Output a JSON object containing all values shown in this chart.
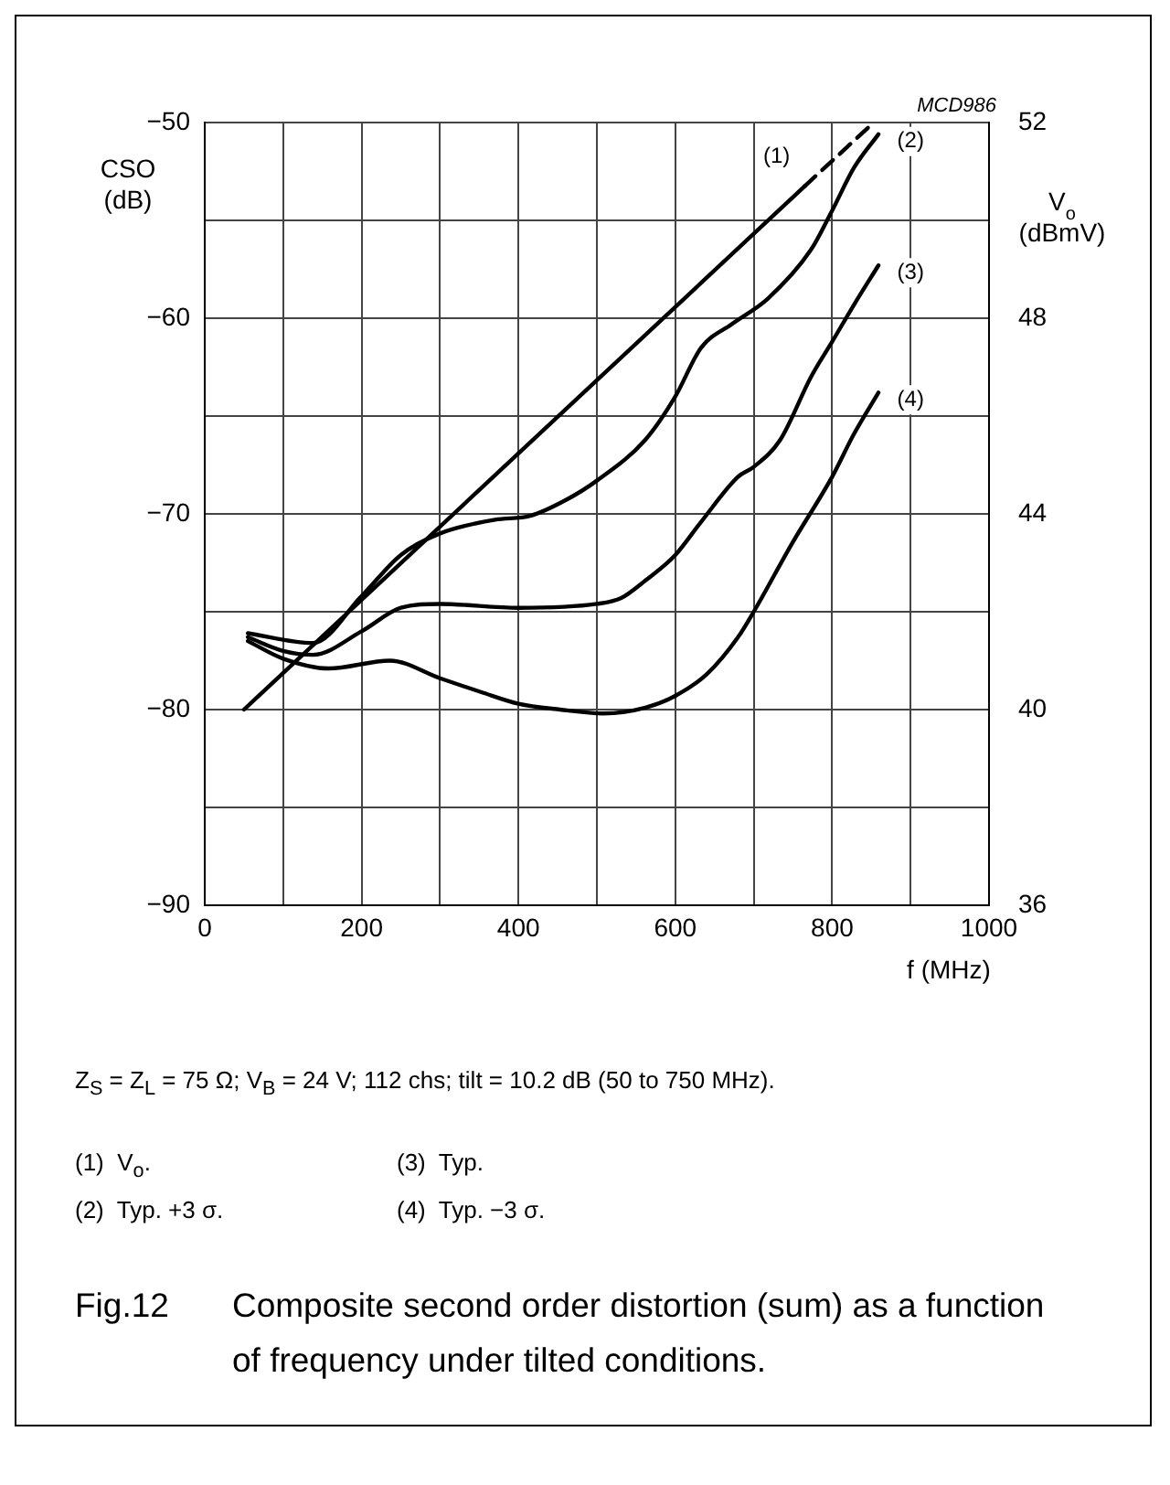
{
  "chart_data": {
    "type": "line",
    "title": "Fig.12  Composite second order distortion (sum) as a function of frequency under tilted conditions.",
    "xlabel": "f (MHz)",
    "ylabel": "CSO\n(dB)",
    "y2label": "V$_{o}$\n(dBmV)",
    "annotations": [
      "MCD986",
      "Z$_{S}$ = Z$_{L}$ = 75 Ω; V$_{B}$ = 24 V; 112 chs; tilt = 10.2 dB (50 to 750 MHz).",
      "(1)  V$_{o}$.",
      "(3)  Typ.",
      "(2)  Typ. +3 σ.",
      "(4)  Typ. −3 σ."
    ],
    "xlim": [
      0,
      1000
    ],
    "xticks": [
      0,
      {
        "value": 100,
        "label": null
      },
      200,
      {
        "value": 300,
        "label": null
      },
      400,
      {
        "value": 500,
        "label": null
      },
      600,
      {
        "value": 700,
        "label": null
      },
      800,
      {
        "value": 900,
        "label": null
      },
      1000
    ],
    "ylim": [
      -90,
      -50
    ],
    "yticks": [
      {
        "value": -90,
        "label": "−90"
      },
      {
        "value": -85,
        "label": null
      },
      {
        "value": -80,
        "label": "−80"
      },
      {
        "value": -75,
        "label": null
      },
      {
        "value": -70,
        "label": "−70"
      },
      {
        "value": -65,
        "label": null
      },
      {
        "value": -60,
        "label": "−60"
      },
      {
        "value": -55,
        "label": null
      },
      {
        "value": -50,
        "label": "−50"
      }
    ],
    "y2lim": [
      36,
      52
    ],
    "y2ticks": [
      36,
      40,
      44,
      48,
      52
    ],
    "grid": true,
    "legend": false,
    "marker": "none",
    "series": [
      {
        "name": "(1)",
        "color": "#000000",
        "axis": "y2",
        "line_style": "solid",
        "x": [
          50,
          765
        ],
        "values": [
          40,
          50.7
        ]
      },
      {
        "color": "#000000",
        "axis": "y2",
        "line_style": "dashed",
        "x": [
          765,
          853
        ],
        "values": [
          50.7,
          52
        ]
      },
      {
        "name": "(2)",
        "color": "#000000",
        "line_style": "solid",
        "x": [
          55,
          138,
          200,
          250,
          300,
          370,
          415,
          460,
          500,
          562,
          600,
          633,
          672,
          718,
          773,
          800,
          828,
          859
        ],
        "values": [
          -76.1,
          -76.6,
          -74.2,
          -72.1,
          -71.0,
          -70.3,
          -70.1,
          -69.3,
          -68.3,
          -66.2,
          -64.0,
          -61.5,
          -60.3,
          -59.0,
          -56.5,
          -54.5,
          -52.3,
          -50.6
        ]
      },
      {
        "name": "(3)",
        "color": "#000000",
        "line_style": "solid",
        "x": [
          55,
          100,
          138,
          200,
          250,
          300,
          400,
          500,
          531,
          562,
          600,
          633,
          680,
          700,
          734,
          773,
          800,
          828,
          859
        ],
        "values": [
          -76.3,
          -77.0,
          -77.2,
          -76.0,
          -74.8,
          -74.6,
          -74.8,
          -74.6,
          -74.3,
          -73.4,
          -72.1,
          -70.4,
          -68.1,
          -67.6,
          -66.2,
          -63.0,
          -61.2,
          -59.3,
          -57.3
        ]
      },
      {
        "name": "(4)",
        "color": "#000000",
        "line_style": "solid",
        "x": [
          55,
          100,
          158,
          236,
          300,
          352,
          400,
          453,
          508,
          562,
          600,
          640,
          680,
          700,
          749,
          800,
          828,
          859
        ],
        "values": [
          -76.5,
          -77.4,
          -77.9,
          -77.5,
          -78.4,
          -79.1,
          -79.7,
          -80.0,
          -80.2,
          -79.9,
          -79.3,
          -78.2,
          -76.3,
          -75.0,
          -71.5,
          -68.1,
          -65.9,
          -63.8
        ]
      }
    ]
  }
}
